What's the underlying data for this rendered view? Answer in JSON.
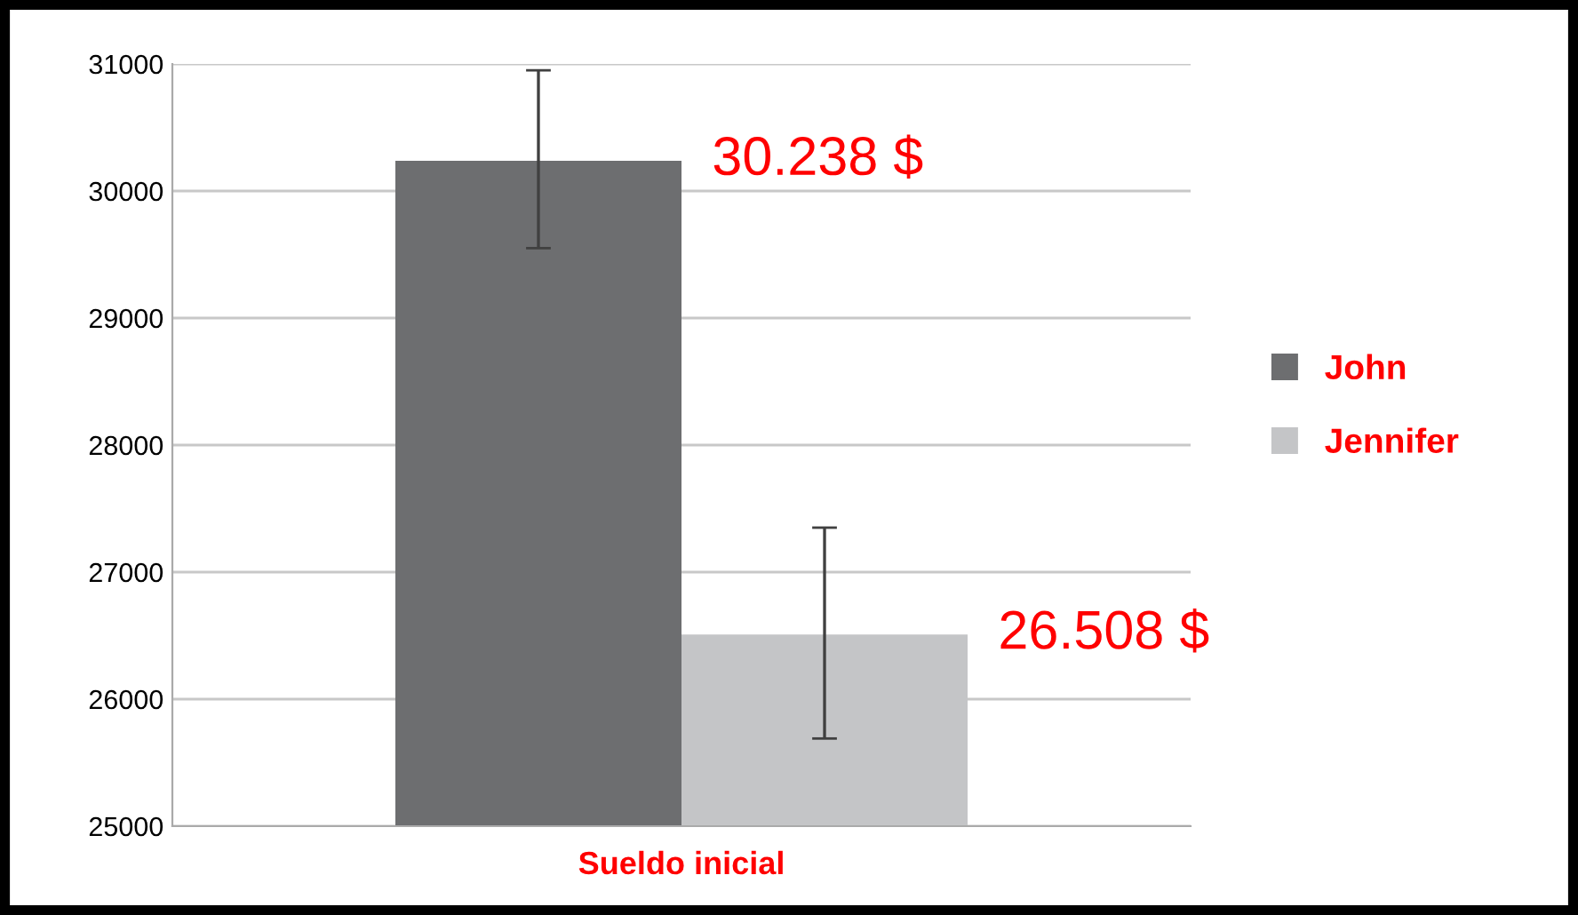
{
  "chart_data": {
    "type": "bar",
    "categories": [
      "Sueldo inicial"
    ],
    "series": [
      {
        "name": "John",
        "color": "#6d6e70",
        "values": [
          30238
        ],
        "errors": [
          [
            29550,
            30950
          ]
        ]
      },
      {
        "name": "Jennifer",
        "color": "#c4c5c7",
        "values": [
          26508
        ],
        "errors": [
          [
            25690,
            27350
          ]
        ]
      }
    ],
    "annotations": [
      "30.238 $",
      "26.508 $"
    ],
    "ylim": [
      25000,
      31000
    ],
    "yticks": [
      25000,
      26000,
      27000,
      28000,
      29000,
      30000,
      31000
    ],
    "grid": "y",
    "legend": "right"
  }
}
